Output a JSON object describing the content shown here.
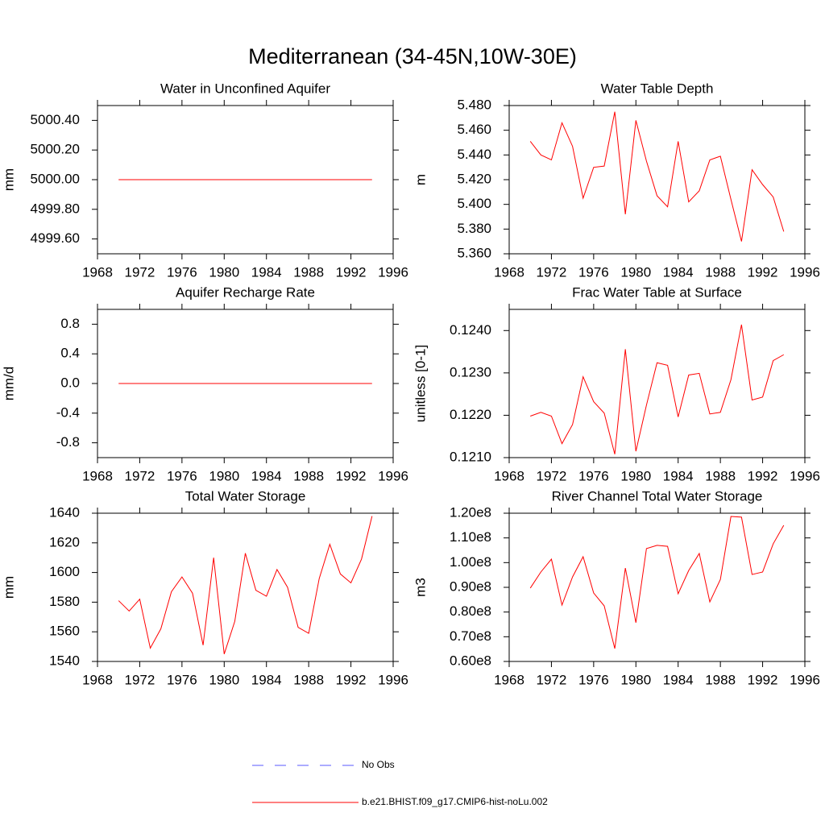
{
  "title": "Mediterranean (34-45N,10W-30E)",
  "legend": [
    {
      "name": "No Obs",
      "color": "#5a5aff",
      "dash": true
    },
    {
      "name": "b.e21.BHIST.f09_g17.CMIP6-hist-noLu.002",
      "color": "#ff0000",
      "dash": false
    }
  ],
  "chart_data": [
    {
      "type": "line",
      "title": "Water in Unconfined Aquifer",
      "y_label": "mm",
      "x": [
        1970,
        1971,
        1972,
        1973,
        1974,
        1975,
        1976,
        1977,
        1978,
        1979,
        1980,
        1981,
        1982,
        1983,
        1984,
        1985,
        1986,
        1987,
        1988,
        1989,
        1990,
        1991,
        1992,
        1993,
        1994
      ],
      "series": [
        {
          "color": "#ff0000",
          "values": [
            5000,
            5000,
            5000,
            5000,
            5000,
            5000,
            5000,
            5000,
            5000,
            5000,
            5000,
            5000,
            5000,
            5000,
            5000,
            5000,
            5000,
            5000,
            5000,
            5000,
            5000,
            5000,
            5000,
            5000,
            5000
          ]
        }
      ],
      "xlim": [
        1968,
        1996
      ],
      "xticks": [
        1968,
        1972,
        1976,
        1980,
        1984,
        1988,
        1992,
        1996
      ],
      "ylim": [
        4999.5,
        5000.5
      ],
      "yticks": [
        {
          "value": 4999.6,
          "label": "4999.60"
        },
        {
          "value": 4999.8,
          "label": "4999.80"
        },
        {
          "value": 5000,
          "label": "5000.00"
        },
        {
          "value": 5000.2,
          "label": "5000.20"
        },
        {
          "value": 5000.4,
          "label": "5000.40"
        }
      ]
    },
    {
      "type": "line",
      "title": "Water Table Depth",
      "y_label": "m",
      "x": [
        1970,
        1971,
        1972,
        1973,
        1974,
        1975,
        1976,
        1977,
        1978,
        1979,
        1980,
        1981,
        1982,
        1983,
        1984,
        1985,
        1986,
        1987,
        1988,
        1989,
        1990,
        1991,
        1992,
        1993,
        1994
      ],
      "series": [
        {
          "color": "#ff0000",
          "values": [
            5.451,
            5.44,
            5.436,
            5.466,
            5.447,
            5.405,
            5.43,
            5.431,
            5.475,
            5.392,
            5.468,
            5.435,
            5.407,
            5.398,
            5.451,
            5.402,
            5.411,
            5.436,
            5.439,
            5.404,
            5.37,
            5.428,
            5.416,
            5.406,
            5.378
          ]
        }
      ],
      "xlim": [
        1968,
        1996
      ],
      "xticks": [
        1968,
        1972,
        1976,
        1980,
        1984,
        1988,
        1992,
        1996
      ],
      "ylim": [
        5.36,
        5.48
      ],
      "yticks": [
        {
          "value": 5.36,
          "label": "5.360"
        },
        {
          "value": 5.38,
          "label": "5.380"
        },
        {
          "value": 5.4,
          "label": "5.400"
        },
        {
          "value": 5.42,
          "label": "5.420"
        },
        {
          "value": 5.44,
          "label": "5.440"
        },
        {
          "value": 5.46,
          "label": "5.460"
        },
        {
          "value": 5.48,
          "label": "5.480"
        }
      ]
    },
    {
      "type": "line",
      "title": "Aquifer Recharge Rate",
      "y_label": "mm/d",
      "x": [
        1970,
        1971,
        1972,
        1973,
        1974,
        1975,
        1976,
        1977,
        1978,
        1979,
        1980,
        1981,
        1982,
        1983,
        1984,
        1985,
        1986,
        1987,
        1988,
        1989,
        1990,
        1991,
        1992,
        1993,
        1994
      ],
      "series": [
        {
          "color": "#ff0000",
          "values": [
            0,
            0,
            0,
            0,
            0,
            0,
            0,
            0,
            0,
            0,
            0,
            0,
            0,
            0,
            0,
            0,
            0,
            0,
            0,
            0,
            0,
            0,
            0,
            0,
            0
          ]
        }
      ],
      "xlim": [
        1968,
        1996
      ],
      "xticks": [
        1968,
        1972,
        1976,
        1980,
        1984,
        1988,
        1992,
        1996
      ],
      "ylim": [
        -1,
        1
      ],
      "yticks": [
        -0.8,
        -0.4,
        {
          "value": 0,
          "label": "0.0"
        },
        0.4,
        0.8
      ]
    },
    {
      "type": "line",
      "title": "Frac Water Table at Surface",
      "y_label": "unitless [0-1]",
      "x": [
        1970,
        1971,
        1972,
        1973,
        1974,
        1975,
        1976,
        1977,
        1978,
        1979,
        1980,
        1981,
        1982,
        1983,
        1984,
        1985,
        1986,
        1987,
        1988,
        1989,
        1990,
        1991,
        1992,
        1993,
        1994
      ],
      "series": [
        {
          "color": "#ff0000",
          "values": [
            0.12198,
            0.12207,
            0.12198,
            0.12133,
            0.12178,
            0.12291,
            0.12232,
            0.12205,
            0.12108,
            0.12356,
            0.12115,
            0.12224,
            0.12324,
            0.12318,
            0.12196,
            0.12295,
            0.12299,
            0.12203,
            0.12207,
            0.12284,
            0.12414,
            0.12236,
            0.12243,
            0.12329,
            0.12343
          ]
        }
      ],
      "xlim": [
        1968,
        1996
      ],
      "xticks": [
        1968,
        1972,
        1976,
        1980,
        1984,
        1988,
        1992,
        1996
      ],
      "ylim": [
        0.121,
        0.1245
      ],
      "yticks": [
        {
          "value": 0.121,
          "label": "0.1210"
        },
        {
          "value": 0.122,
          "label": "0.1220"
        },
        {
          "value": 0.123,
          "label": "0.1230"
        },
        {
          "value": 0.124,
          "label": "0.1240"
        }
      ]
    },
    {
      "type": "line",
      "title": "Total Water Storage",
      "y_label": "mm",
      "x": [
        1970,
        1971,
        1972,
        1973,
        1974,
        1975,
        1976,
        1977,
        1978,
        1979,
        1980,
        1981,
        1982,
        1983,
        1984,
        1985,
        1986,
        1987,
        1988,
        1989,
        1990,
        1991,
        1992,
        1993,
        1994
      ],
      "series": [
        {
          "color": "#ff0000",
          "values": [
            1581,
            1574,
            1582,
            1549,
            1562,
            1587,
            1597,
            1586,
            1551,
            1610,
            1545,
            1567,
            1613,
            1588,
            1584,
            1602,
            1590,
            1563,
            1559,
            1596,
            1619,
            1599,
            1593,
            1609,
            1638
          ]
        }
      ],
      "xlim": [
        1968,
        1996
      ],
      "xticks": [
        1968,
        1972,
        1976,
        1980,
        1984,
        1988,
        1992,
        1996
      ],
      "ylim": [
        1540,
        1640
      ],
      "yticks": [
        1540,
        1560,
        1580,
        1600,
        1620,
        1640
      ]
    },
    {
      "type": "line",
      "title": "River Channel Total Water Storage",
      "y_label": "m3",
      "x": [
        1970,
        1971,
        1972,
        1973,
        1974,
        1975,
        1976,
        1977,
        1978,
        1979,
        1980,
        1981,
        1982,
        1983,
        1984,
        1985,
        1986,
        1987,
        1988,
        1989,
        1990,
        1991,
        1992,
        1993,
        1994
      ],
      "series": [
        {
          "color": "#ff0000",
          "values": [
            89700000,
            96200000,
            101400000,
            82800000,
            94200000,
            102400000,
            87700000,
            82500000,
            65200000,
            97800000,
            75700000,
            105700000,
            107000000,
            106600000,
            87400000,
            96800000,
            103700000,
            84100000,
            93200000,
            118700000,
            118400000,
            95200000,
            96200000,
            107600000,
            115100000
          ]
        }
      ],
      "xlim": [
        1968,
        1996
      ],
      "xticks": [
        1968,
        1972,
        1976,
        1980,
        1984,
        1988,
        1992,
        1996
      ],
      "ylim": [
        60000000,
        120000000
      ],
      "yticks": [
        {
          "value": 60000000,
          "label": "0.60e8"
        },
        {
          "value": 70000000,
          "label": "0.70e8"
        },
        {
          "value": 80000000,
          "label": "0.80e8"
        },
        {
          "value": 90000000,
          "label": "0.90e8"
        },
        {
          "value": 100000000,
          "label": "1.00e8"
        },
        {
          "value": 110000000,
          "label": "1.10e8"
        },
        {
          "value": 120000000,
          "label": "1.20e8"
        }
      ]
    }
  ]
}
